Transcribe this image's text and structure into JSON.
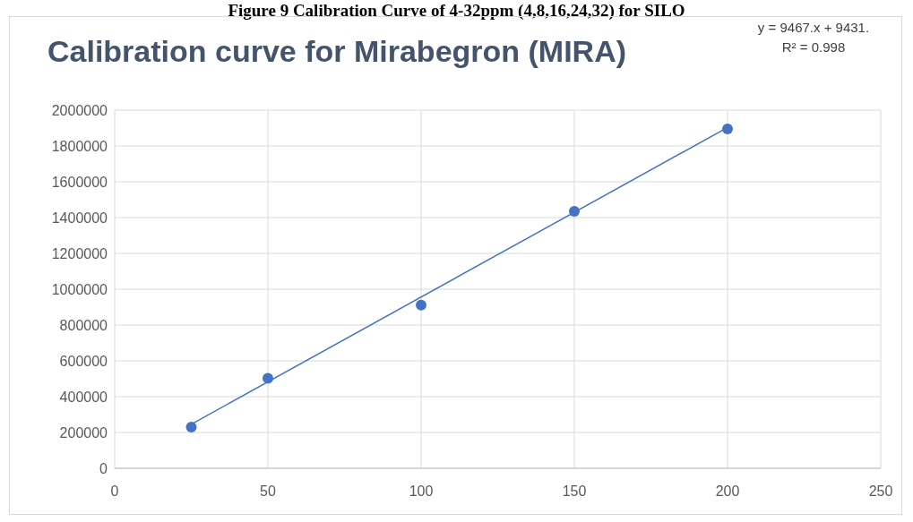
{
  "chart_data": {
    "type": "scatter",
    "title": "Calibration curve for Mirabegron (MIRA)",
    "annotations": [
      "Figure 9 Calibration Curve of 4-32ppm (4,8,16,24,32) for SILO",
      "y = 9467.x + 9431.",
      "R² = 0.998"
    ],
    "x": [
      25,
      50,
      100,
      150,
      200
    ],
    "series": [
      {
        "color": "#4472c4",
        "values": [
          230000,
          503000,
          911000,
          1435000,
          1895000
        ],
        "marker": "circle"
      },
      {
        "type": "line",
        "color": "#4472c4",
        "x": [
          25,
          200
        ],
        "values": [
          246000,
          1903000
        ],
        "line_style": "solid",
        "marker": "none"
      }
    ],
    "xlim": [
      0,
      250
    ],
    "xticks": [
      0,
      50,
      100,
      150,
      200,
      250
    ],
    "ylim": [
      0,
      2000000
    ],
    "yticks": [
      0,
      200000,
      400000,
      600000,
      800000,
      1000000,
      1200000,
      1400000,
      1600000,
      1800000,
      2000000
    ],
    "grid": true
  }
}
